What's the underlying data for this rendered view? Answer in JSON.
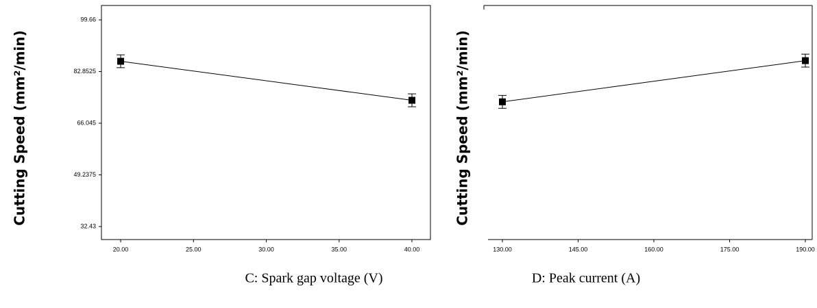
{
  "chart_data": [
    {
      "type": "line",
      "y_label": "Cutting Speed (mm²/min)",
      "x_label": "C: Spark gap voltage (V)",
      "x": [
        20,
        40
      ],
      "values": [
        86.2,
        73.5
      ],
      "errors": [
        2.1,
        2.1
      ],
      "color": "#000000",
      "xlim": [
        18.68,
        41.27
      ],
      "ylim": [
        28.19,
        104.35
      ],
      "xticks": [
        {
          "value": 20,
          "label": "20.00"
        },
        {
          "value": 25,
          "label": "25.00"
        },
        {
          "value": 30,
          "label": "30.00"
        },
        {
          "value": 35,
          "label": "35.00"
        },
        {
          "value": 40,
          "label": "40.00"
        }
      ],
      "yticks": [
        99.66,
        82.8525,
        66.045,
        49.2375,
        32.43
      ]
    },
    {
      "type": "line",
      "y_label": "Cutting Speed (mm²/min)",
      "x_label": "D: Peak current (A)",
      "x": [
        130,
        190
      ],
      "values": [
        73.0,
        86.4
      ],
      "errors": [
        2.1,
        2.1
      ],
      "color": "#000000",
      "xlim": [
        127.15,
        191.36
      ],
      "ylim": [
        28.19,
        104.35
      ],
      "xticks": [
        {
          "value": 130,
          "label": "130.00"
        },
        {
          "value": 145,
          "label": "145.00"
        },
        {
          "value": 160,
          "label": "160.00"
        },
        {
          "value": 175,
          "label": "175.00"
        },
        {
          "value": 190,
          "label": "190.00"
        }
      ]
    }
  ]
}
